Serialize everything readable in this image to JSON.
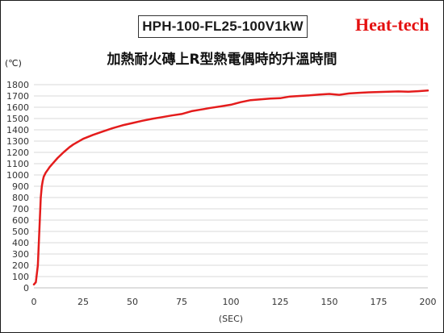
{
  "header": {
    "model": "HPH-100-FL25-100V1kW",
    "brand": "Heat-tech"
  },
  "chart_data": {
    "type": "line",
    "title": "加熱耐火磚上R型熱電偶時的升溫時間",
    "ylabel": "(℃)",
    "xlabel": "(SEC)",
    "xlim": [
      0,
      200
    ],
    "ylim": [
      0,
      1800
    ],
    "xticks": [
      0,
      25,
      50,
      75,
      100,
      125,
      150,
      175,
      200
    ],
    "yticks": [
      0,
      100,
      200,
      300,
      400,
      500,
      600,
      700,
      800,
      900,
      1000,
      1100,
      1200,
      1300,
      1400,
      1500,
      1600,
      1700,
      1800
    ],
    "grid": "horizontal",
    "legend": "none",
    "series": [
      {
        "color": "#e41c1c",
        "x": [
          0,
          1,
          2,
          3,
          3.5,
          4,
          4.5,
          5,
          6,
          7,
          8,
          10,
          12,
          15,
          18,
          20,
          25,
          30,
          35,
          40,
          45,
          50,
          55,
          60,
          65,
          70,
          75,
          80,
          85,
          90,
          95,
          100,
          105,
          110,
          115,
          120,
          125,
          130,
          135,
          140,
          145,
          150,
          155,
          160,
          165,
          170,
          175,
          180,
          185,
          190,
          195,
          200
        ],
        "values": [
          30,
          50,
          200,
          600,
          800,
          900,
          950,
          985,
          1020,
          1045,
          1070,
          1110,
          1150,
          1200,
          1245,
          1270,
          1320,
          1355,
          1385,
          1415,
          1440,
          1460,
          1480,
          1497,
          1512,
          1527,
          1540,
          1565,
          1580,
          1595,
          1608,
          1622,
          1645,
          1663,
          1670,
          1677,
          1680,
          1695,
          1700,
          1705,
          1712,
          1718,
          1710,
          1722,
          1728,
          1732,
          1735,
          1738,
          1740,
          1737,
          1742,
          1748
        ]
      }
    ]
  }
}
